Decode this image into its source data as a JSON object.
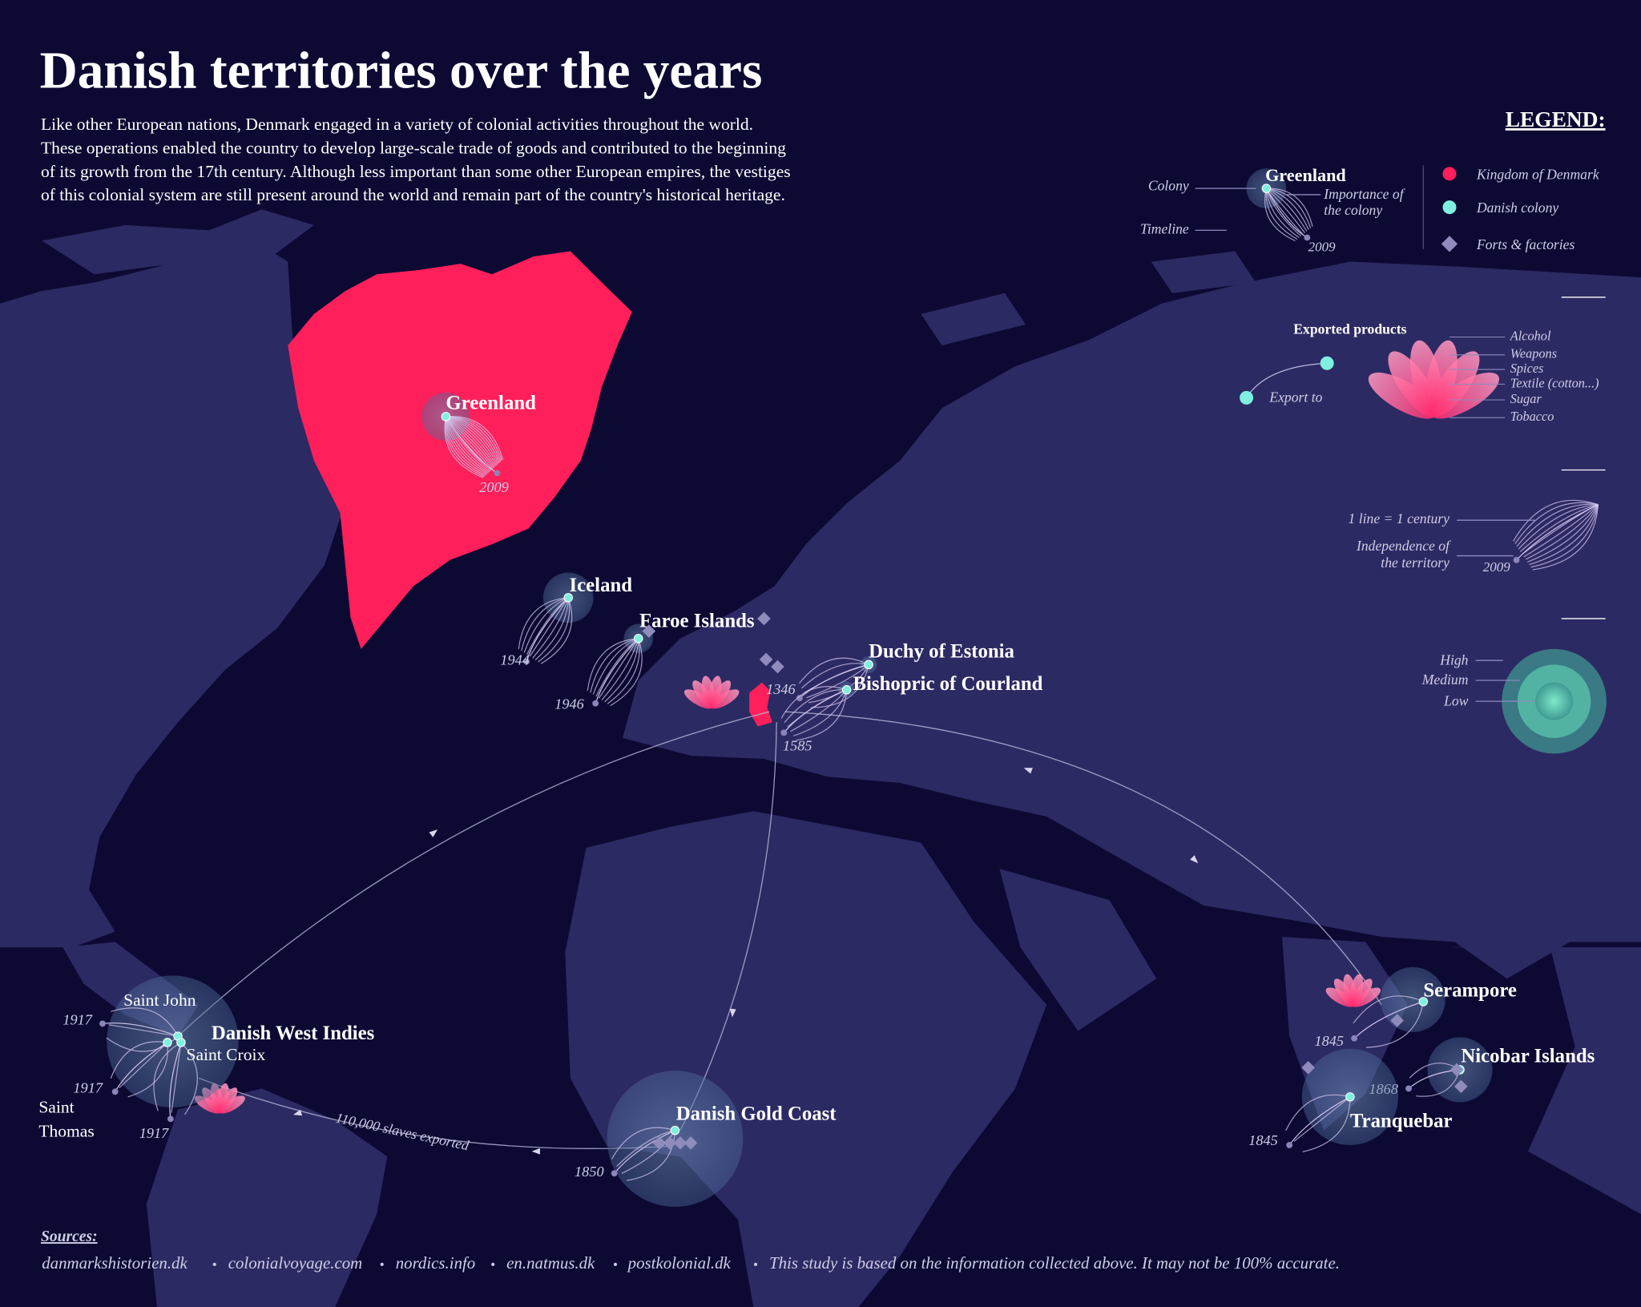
{
  "header": {
    "title": "Danish territories over the years",
    "intro": [
      "Like other European nations, Denmark engaged in a variety of colonial activities throughout the world.",
      "These operations enabled the country to develop large-scale trade of goods and contributed to the beginning",
      "of its growth from the 17th century. Although less important than some other European empires, the vestiges",
      "of this colonial system are still present around the world and remain part of the country's historical heritage."
    ]
  },
  "legend": {
    "title": "LEGEND:",
    "colony": "Colony",
    "timeline": "Timeline",
    "example_name": "Greenland",
    "importance": [
      "Importance of",
      "the colony"
    ],
    "example_year": "2009",
    "kinds": [
      "Kingdom of Denmark",
      "Danish colony",
      "Forts & factories"
    ],
    "exported_products": "Exported products",
    "export_to": "Export to",
    "products": [
      "Alcohol",
      "Weapons",
      "Spices",
      "Textile (cotton...)",
      "Sugar",
      "Tobacco"
    ],
    "line_note": "1 line = 1 century",
    "independence": [
      "Independence of",
      "the territory"
    ],
    "line_year": "2009",
    "importance_levels": [
      "High",
      "Medium",
      "Low"
    ]
  },
  "territories": [
    {
      "name": "Greenland",
      "year": "2009"
    },
    {
      "name": "Iceland",
      "year": "1944"
    },
    {
      "name": "Faroe Islands",
      "year": "1946"
    },
    {
      "name": "Duchy of Estonia",
      "year": "1346"
    },
    {
      "name": "Bishopric of Courland",
      "year": "1585"
    },
    {
      "name": "Danish Gold Coast",
      "year": "1850"
    },
    {
      "name": "Serampore",
      "year": "1845"
    },
    {
      "name": "Nicobar Islands",
      "year": "1868"
    },
    {
      "name": "Tranquebar",
      "year": "1845"
    }
  ],
  "west_indies": {
    "name": "Danish West Indies",
    "islands": [
      {
        "name": [
          "Saint John"
        ],
        "year": "1917"
      },
      {
        "name": [
          "Saint",
          "Thomas"
        ],
        "year": "1917"
      },
      {
        "name": [
          "Saint Croix"
        ],
        "year": "1917"
      }
    ]
  },
  "route_label": "110,000 slaves exported",
  "sources": {
    "title": "Sources:",
    "items": [
      "danmarkshistorien.dk",
      "colonialvoyage.com",
      "nordics.info",
      "en.natmus.dk",
      "postkolonial.dk"
    ],
    "note": "This study is based on the information collected above. It may not be 100% accurate."
  }
}
